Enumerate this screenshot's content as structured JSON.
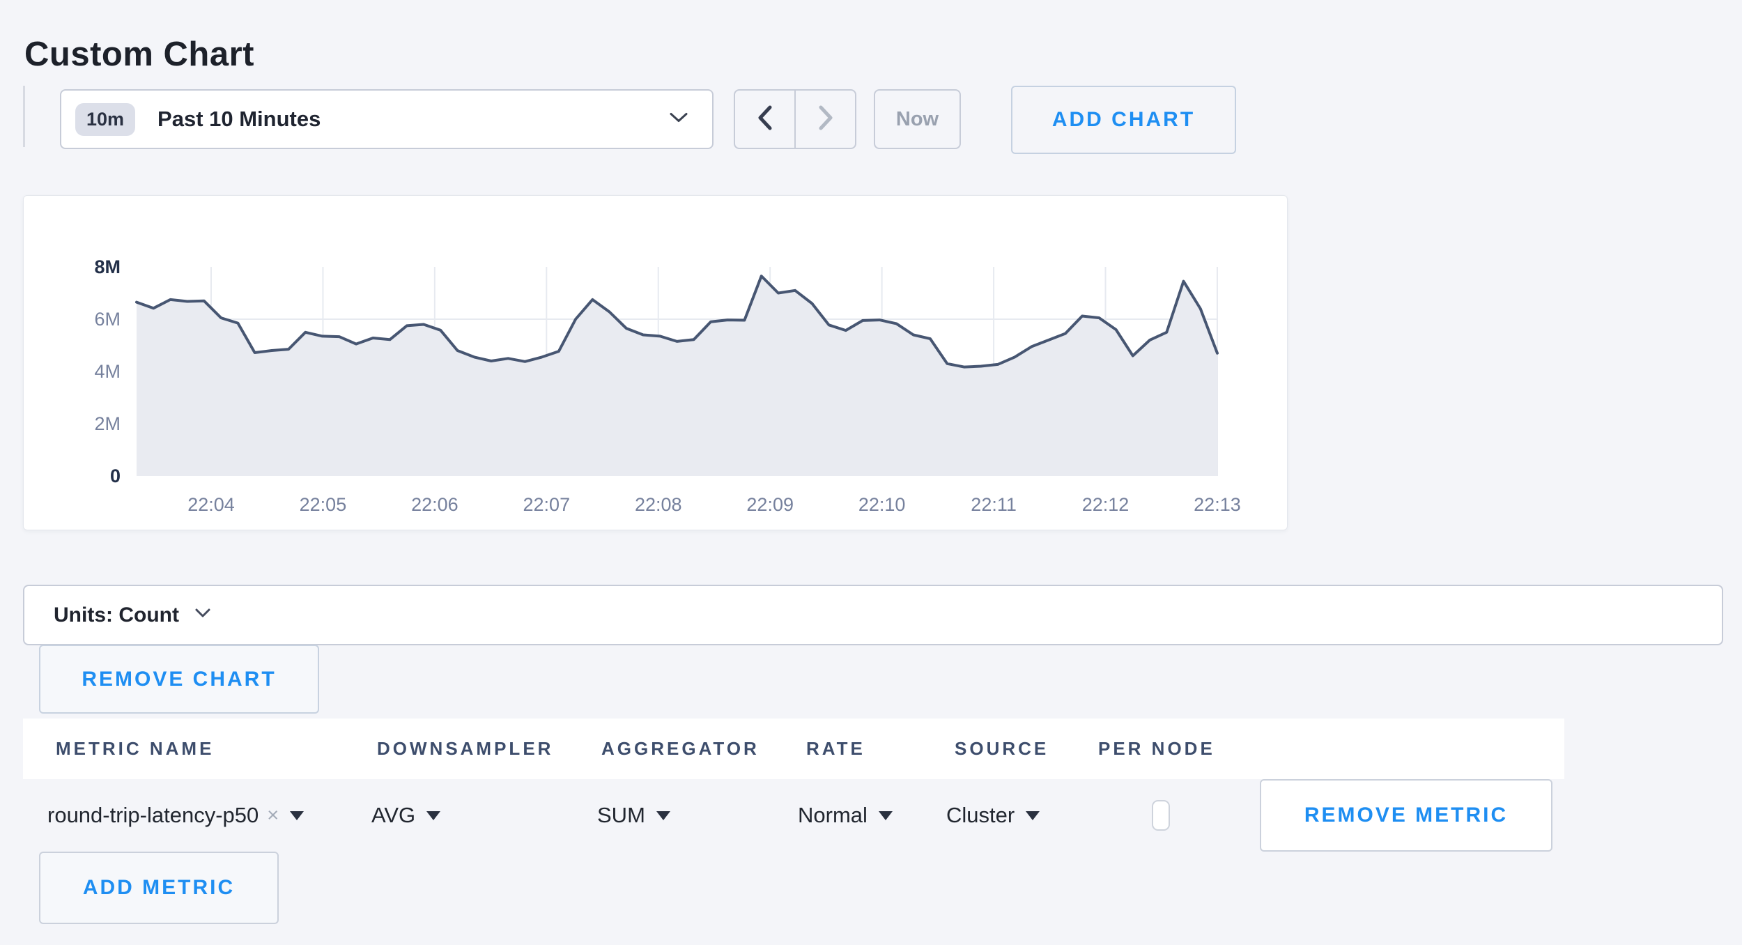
{
  "page": {
    "title": "Custom Chart"
  },
  "toolbar": {
    "time_range": {
      "badge": "10m",
      "label": "Past 10 Minutes"
    },
    "prev_icon": "chevron-left",
    "next_icon": "chevron-right",
    "now_label": "Now",
    "add_chart_label": "ADD CHART"
  },
  "chart_data": {
    "type": "area",
    "title": "",
    "xlabel": "",
    "ylabel": "",
    "grid": true,
    "legend": "none",
    "x_tick_labels": [
      "22:04",
      "22:05",
      "22:06",
      "22:07",
      "22:08",
      "22:09",
      "22:10",
      "22:11",
      "22:12",
      "22:13"
    ],
    "y_tick_labels": [
      "0",
      "2M",
      "4M",
      "6M",
      "8M"
    ],
    "y_tick_values_millions": [
      0,
      2,
      4,
      6,
      8
    ],
    "ylim_millions": [
      0,
      8
    ],
    "x_window": "Past 10 Minutes (~22:03:20 to 22:13:00, ~10s interval)",
    "series": [
      {
        "name": "round-trip-latency-p50",
        "unit": "Count",
        "values_millions": [
          6.65,
          6.42,
          6.75,
          6.68,
          6.7,
          6.05,
          5.85,
          4.72,
          4.8,
          4.85,
          5.5,
          5.35,
          5.33,
          5.05,
          5.28,
          5.22,
          5.75,
          5.8,
          5.58,
          4.8,
          4.55,
          4.4,
          4.5,
          4.38,
          4.55,
          4.77,
          6.0,
          6.75,
          6.28,
          5.65,
          5.4,
          5.35,
          5.15,
          5.22,
          5.9,
          5.97,
          5.96,
          7.65,
          7.0,
          7.1,
          6.6,
          5.78,
          5.57,
          5.95,
          5.97,
          5.83,
          5.4,
          5.25,
          4.3,
          4.17,
          4.2,
          4.27,
          4.55,
          4.95,
          5.2,
          5.45,
          6.12,
          6.05,
          5.6,
          4.6,
          5.2,
          5.5,
          7.45,
          6.4,
          4.7
        ]
      }
    ]
  },
  "units_bar": {
    "label": "Units: Count"
  },
  "chart_actions": {
    "remove_chart_label": "REMOVE CHART"
  },
  "metrics_table": {
    "headers": [
      "METRIC NAME",
      "DOWNSAMPLER",
      "AGGREGATOR",
      "RATE",
      "SOURCE",
      "PER NODE"
    ],
    "rows": [
      {
        "metric_name": "round-trip-latency-p50",
        "remove_tag_icon": "×",
        "downsampler": "AVG",
        "aggregator": "SUM",
        "rate": "Normal",
        "source": "Cluster",
        "per_node_checked": false,
        "remove_metric_label": "REMOVE METRIC"
      }
    ],
    "add_metric_label": "ADD METRIC"
  },
  "colors": {
    "accent_blue": "#1e8ef2",
    "page_bg": "#f4f5f9",
    "line": "#475672",
    "area_fill": "#e9ebf1",
    "gridline": "#e7eaf0"
  }
}
